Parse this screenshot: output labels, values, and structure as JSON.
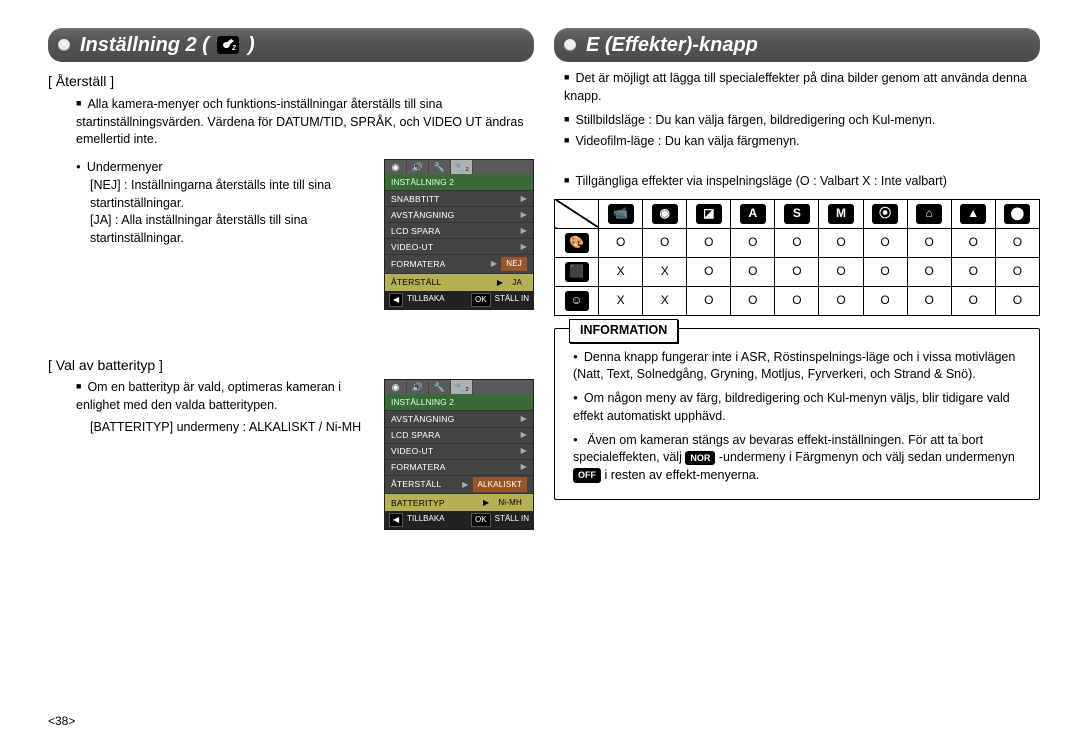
{
  "page_number": "<38>",
  "left": {
    "header_title": "Inställning 2 (",
    "header_icon_label": "2",
    "sections": {
      "reset": {
        "title": "[ Återställ ]",
        "bullet": "Alla kamera-menyer och funktions-inställningar återställs till sina startinställningsvärden. Värdena för DATUM/TID, SPRÅK, och VIDEO UT ändras emellertid inte.",
        "subhead": "Undermenyer",
        "nej_label": "[NEJ]  :",
        "nej_text": "Inställningarna återställs inte till sina startinställningar.",
        "ja_label": "[JA]     :",
        "ja_text": "Alla inställningar återställs till sina startinställningar."
      },
      "battery": {
        "title": "[ Val av batterityp ]",
        "bullet": "Om en batterityp är vald, optimeras kameran i enlighet med den valda batteritypen.",
        "line": "[BATTERITYP] undermeny : ALKALISKT / Ni-MH"
      }
    },
    "lcd1": {
      "head": "INSTÄLLNING 2",
      "rows": [
        "SNABBTITT",
        "AVSTÄNGNING",
        "LCD SPARA",
        "VIDEO-UT",
        "FORMATERA",
        "ÅTERSTÄLL"
      ],
      "val_nej": "NEJ",
      "val_ja": "JA",
      "back": "TILLBAKA",
      "ok": "OK",
      "set": "STÄLL IN"
    },
    "lcd2": {
      "head": "INSTÄLLNING 2",
      "rows": [
        "AVSTÄNGNING",
        "LCD SPARA",
        "VIDEO-UT",
        "FORMATERA",
        "ÅTERSTÄLL",
        "BATTERITYP"
      ],
      "val_alk": "ALKALISKT",
      "val_ni": "Ni-MH",
      "back": "TILLBAKA",
      "ok": "OK",
      "set": "STÄLL IN"
    }
  },
  "right": {
    "header_title": "E (Effekter)-knapp",
    "bullets": [
      "Det är möjligt att lägga till specialeffekter på dina bilder genom att använda denna knapp.",
      "Stillbildsläge : Du kan välja färgen, bildredigering och Kul-menyn.",
      "Videofilm-läge : Du kan välja färgmenyn."
    ],
    "table_caption": "Tillgängliga effekter via inspelningsläge (O : Valbart X : Inte valbart)",
    "modes_text": [
      "",
      "",
      "",
      "A",
      "S",
      "M",
      "",
      "",
      "",
      ""
    ],
    "table": {
      "rows": [
        [
          "O",
          "O",
          "O",
          "O",
          "O",
          "O",
          "O",
          "O",
          "O",
          "O"
        ],
        [
          "X",
          "X",
          "O",
          "O",
          "O",
          "O",
          "O",
          "O",
          "O",
          "O"
        ],
        [
          "X",
          "X",
          "O",
          "O",
          "O",
          "O",
          "O",
          "O",
          "O",
          "O"
        ]
      ]
    },
    "info": {
      "label": "INFORMATION",
      "items": [
        "Denna knapp fungerar inte i ASR, Röstinspelnings-läge och i vissa motivlägen (Natt, Text, Solnedgång, Gryning, Motljus, Fyrverkeri, och Strand & Snö).",
        "Om någon meny av färg, bildredigering och Kul-menyn väljs, blir tidigare vald effekt automatiskt upphävd.",
        "Även om kameran stängs av bevaras effekt-inställningen. För att ta bort specialeffekten, välj ",
        "-undermeny i Färgmenyn och välj sedan undermenyn ",
        " i resten av effekt-menyerna."
      ],
      "pill_nor": "NOR",
      "pill_off": "OFF"
    }
  },
  "colors": {
    "tab_bg": "#555555",
    "lcd_bg": "#333333",
    "lcd_head": "#3a6a36",
    "sel": "#b5b052",
    "val": "#9a5528"
  }
}
